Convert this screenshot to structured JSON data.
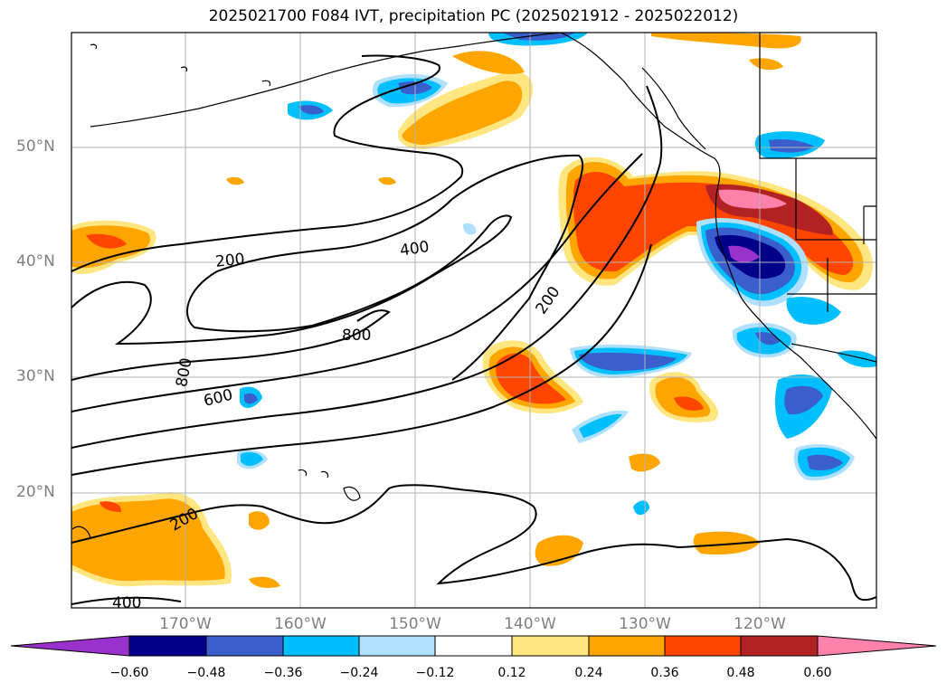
{
  "title": "2025021700 F084 IVT, precipitation PC (2025021912 - 2025022012)",
  "lat_ticks": [
    "50°N",
    "40°N",
    "30°N",
    "20°N"
  ],
  "lon_ticks": [
    "170°W",
    "160°W",
    "150°W",
    "140°W",
    "130°W",
    "120°W"
  ],
  "contour_labels": [
    "200",
    "400",
    "800",
    "800",
    "600",
    "200",
    "200",
    "400"
  ],
  "colorbar": {
    "ticks": [
      "−0.60",
      "−0.48",
      "−0.36",
      "−0.24",
      "−0.12",
      "0.12",
      "0.24",
      "0.36",
      "0.48",
      "0.60"
    ],
    "colors": [
      "#9932cc",
      "#00008b",
      "#3a5fcd",
      "#00bfff",
      "#b0e0ff",
      "#ffffff",
      "#ffe680",
      "#ffa500",
      "#ff4500",
      "#b22222",
      "#ff82ab"
    ]
  },
  "icons": {
    "coastline": "coastline-lines",
    "grid": "graticule"
  }
}
